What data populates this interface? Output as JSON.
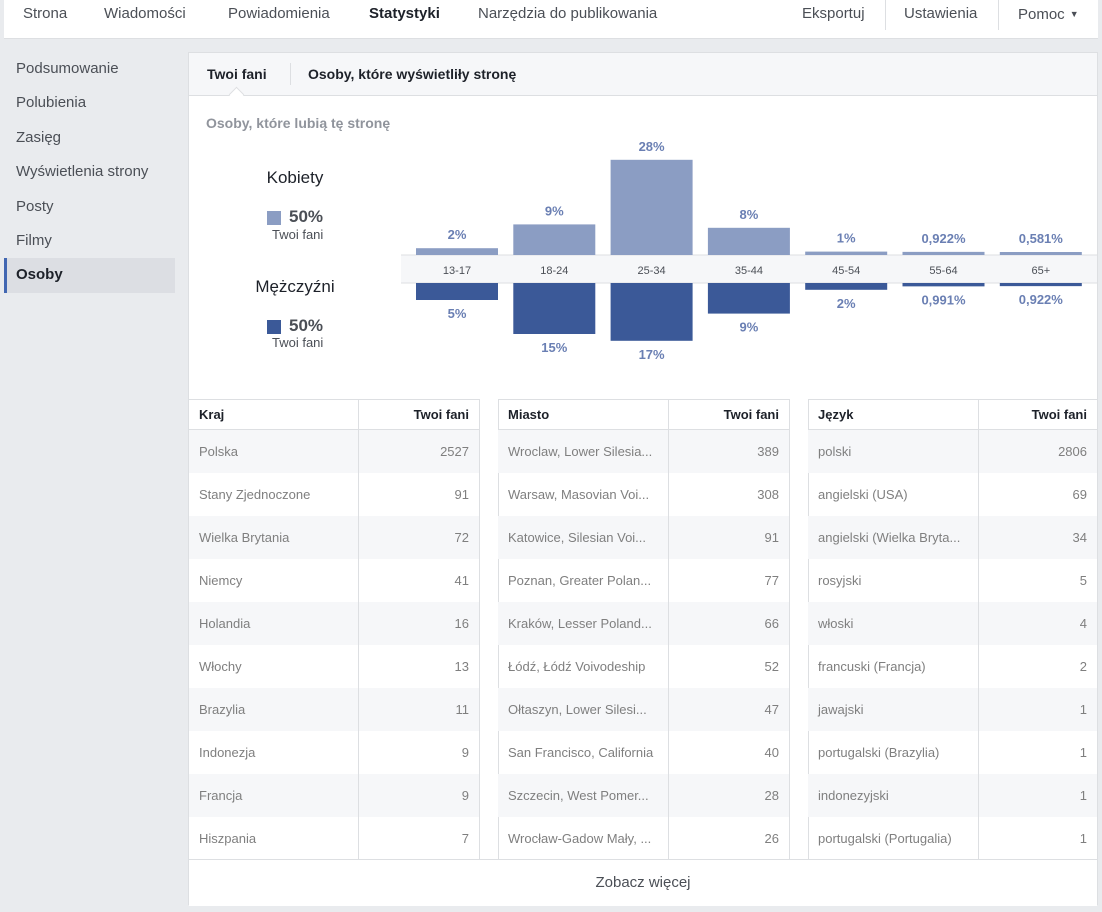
{
  "topnav": {
    "left": [
      "Strona",
      "Wiadomości",
      "Powiadomienia",
      "Statystyki",
      "Narzędzia do publikowania"
    ],
    "active_index": 3,
    "right": [
      "Eksportuj",
      "Ustawienia",
      "Pomoc"
    ]
  },
  "sidebar": {
    "items": [
      "Podsumowanie",
      "Polubienia",
      "Zasięg",
      "Wyświetlenia strony",
      "Posty",
      "Filmy",
      "Osoby"
    ],
    "active_index": 6
  },
  "tabs": {
    "fans": "Twoi fani",
    "viewers": "Osoby, które wyświetliły stronę"
  },
  "section_title": "Osoby, które lubią tę stronę",
  "legend": {
    "women": {
      "title": "Kobiety",
      "pct": "50%",
      "sub": "Twoi fani",
      "color": "#8b9dc3"
    },
    "men": {
      "title": "Mężczyźni",
      "pct": "50%",
      "sub": "Twoi fani",
      "color": "#3b5998"
    }
  },
  "chart_data": {
    "type": "bar",
    "categories": [
      "13-17",
      "18-24",
      "25-34",
      "35-44",
      "45-54",
      "55-64",
      "65+"
    ],
    "series": [
      {
        "name": "Kobiety",
        "values": [
          2,
          9,
          28,
          8,
          1,
          0.922,
          0.581
        ],
        "labels": [
          "2%",
          "9%",
          "28%",
          "8%",
          "1%",
          "0,922%",
          "0,581%"
        ],
        "color": "#8b9dc3"
      },
      {
        "name": "Mężczyźni",
        "values": [
          5,
          15,
          17,
          9,
          2,
          0.991,
          0.922
        ],
        "labels": [
          "5%",
          "15%",
          "17%",
          "9%",
          "2%",
          "0,991%",
          "0,922%"
        ],
        "color": "#3b5998"
      }
    ]
  },
  "tables": [
    {
      "col1": "Kraj",
      "col2": "Twoi fani",
      "rows": [
        [
          "Polska",
          "2527"
        ],
        [
          "Stany Zjednoczone",
          "91"
        ],
        [
          "Wielka Brytania",
          "72"
        ],
        [
          "Niemcy",
          "41"
        ],
        [
          "Holandia",
          "16"
        ],
        [
          "Włochy",
          "13"
        ],
        [
          "Brazylia",
          "11"
        ],
        [
          "Indonezja",
          "9"
        ],
        [
          "Francja",
          "9"
        ],
        [
          "Hiszpania",
          "7"
        ]
      ]
    },
    {
      "col1": "Miasto",
      "col2": "Twoi fani",
      "rows": [
        [
          "Wroclaw, Lower Silesia...",
          "389"
        ],
        [
          "Warsaw, Masovian Voi...",
          "308"
        ],
        [
          "Katowice, Silesian Voi...",
          "91"
        ],
        [
          "Poznan, Greater Polan...",
          "77"
        ],
        [
          "Kraków, Lesser Poland...",
          "66"
        ],
        [
          "Łódź, Łódź Voivodeship",
          "52"
        ],
        [
          "Ołtaszyn, Lower Silesi...",
          "47"
        ],
        [
          "San Francisco, California",
          "40"
        ],
        [
          "Szczecin, West Pomer...",
          "28"
        ],
        [
          "Wrocław-Gadow Mały, ...",
          "26"
        ]
      ]
    },
    {
      "col1": "Język",
      "col2": "Twoi fani",
      "rows": [
        [
          "polski",
          "2806"
        ],
        [
          "angielski (USA)",
          "69"
        ],
        [
          "angielski (Wielka Bryta...",
          "34"
        ],
        [
          "rosyjski",
          "5"
        ],
        [
          "włoski",
          "4"
        ],
        [
          "francuski (Francja)",
          "2"
        ],
        [
          "jawajski",
          "1"
        ],
        [
          "portugalski (Brazylia)",
          "1"
        ],
        [
          "indonezyjski",
          "1"
        ],
        [
          "portugalski (Portugalia)",
          "1"
        ]
      ]
    }
  ],
  "see_more": "Zobacz więcej"
}
